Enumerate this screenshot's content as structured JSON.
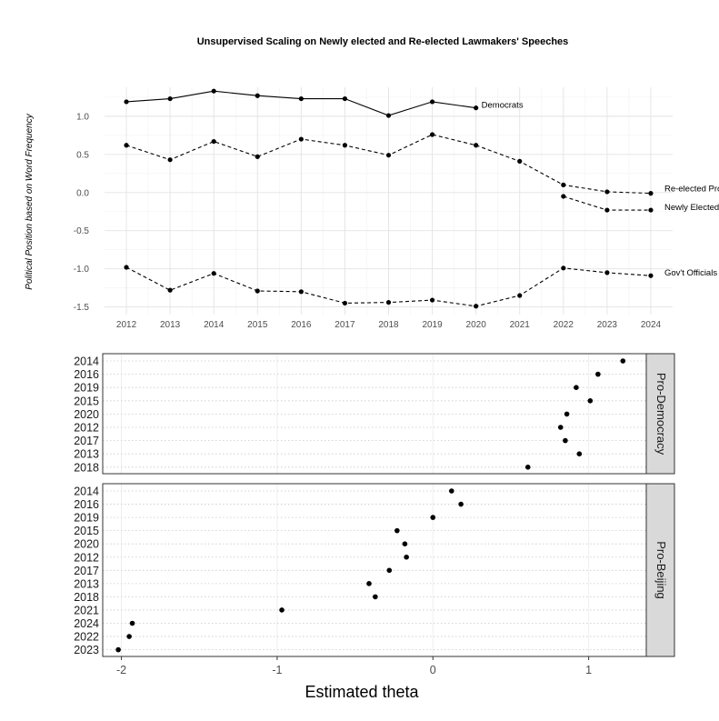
{
  "chart_data": [
    {
      "type": "line",
      "title": "Unsupervised Scaling on Newly elected and Re-elected Lawmakers' Speeches",
      "xlabel": "",
      "ylabel": "Political Position based on Word Frequency",
      "x_ticks": [
        2012,
        2013,
        2014,
        2015,
        2016,
        2017,
        2018,
        2019,
        2020,
        2021,
        2022,
        2023,
        2024
      ],
      "y_ticks": [
        -1.5,
        -1.0,
        -0.5,
        0.0,
        0.5,
        1.0
      ],
      "y_tick_labels": [
        "-1.5",
        "-1.0",
        "-0.5",
        "0.0",
        "0.5",
        "1.0"
      ],
      "xlim": [
        2011.5,
        2024.5
      ],
      "ylim": [
        -1.6,
        1.38
      ],
      "grid": true,
      "series": [
        {
          "name": "Democrats",
          "dash": "solid",
          "x": [
            2012,
            2013,
            2014,
            2015,
            2016,
            2017,
            2018,
            2019,
            2020
          ],
          "values": [
            1.19,
            1.23,
            1.33,
            1.27,
            1.23,
            1.23,
            1.01,
            1.19,
            1.11
          ]
        },
        {
          "name": "Re-elected Pro-Beijing Lawmakers",
          "dash": "dashed",
          "x": [
            2012,
            2013,
            2014,
            2015,
            2016,
            2017,
            2018,
            2019,
            2020,
            2021,
            2022,
            2023,
            2024
          ],
          "values": [
            0.62,
            0.43,
            0.67,
            0.47,
            0.7,
            0.62,
            0.49,
            0.76,
            0.62,
            0.41,
            0.1,
            0.01,
            -0.01
          ]
        },
        {
          "name": "Newly Elected Pro-Beijing Lawmakers",
          "dash": "dashed",
          "x": [
            2022,
            2023,
            2024
          ],
          "values": [
            -0.05,
            -0.23,
            -0.23
          ]
        },
        {
          "name": "Gov't Officials",
          "dash": "dashed",
          "x": [
            2012,
            2013,
            2014,
            2015,
            2016,
            2017,
            2018,
            2019,
            2020,
            2021,
            2022,
            2023,
            2024
          ],
          "values": [
            -0.98,
            -1.28,
            -1.06,
            -1.29,
            -1.3,
            -1.45,
            -1.44,
            -1.41,
            -1.49,
            -1.35,
            -0.99,
            -1.05,
            -1.09
          ]
        }
      ]
    },
    {
      "type": "scatter",
      "title": "",
      "xlabel": "Estimated theta",
      "x_ticks": [
        -2,
        -1,
        0,
        1
      ],
      "x_tick_labels": [
        "-2",
        "-1",
        "0",
        "1"
      ],
      "xlim": [
        -2.12,
        1.37
      ],
      "grid": true,
      "facets": [
        {
          "name": "Pro-Democracy",
          "categories": [
            "2014",
            "2016",
            "2019",
            "2015",
            "2020",
            "2012",
            "2017",
            "2013",
            "2018"
          ],
          "values": [
            1.22,
            1.06,
            0.92,
            1.01,
            0.86,
            0.82,
            0.85,
            0.94,
            0.61
          ]
        },
        {
          "name": "Pro-Beijing",
          "categories": [
            "2014",
            "2016",
            "2019",
            "2015",
            "2020",
            "2012",
            "2017",
            "2013",
            "2018",
            "2021",
            "2024",
            "2022",
            "2023"
          ],
          "values": [
            0.12,
            0.18,
            0.0,
            -0.23,
            -0.18,
            -0.17,
            -0.28,
            -0.41,
            -0.37,
            -0.97,
            -1.93,
            -1.95,
            -2.02
          ]
        }
      ]
    }
  ]
}
